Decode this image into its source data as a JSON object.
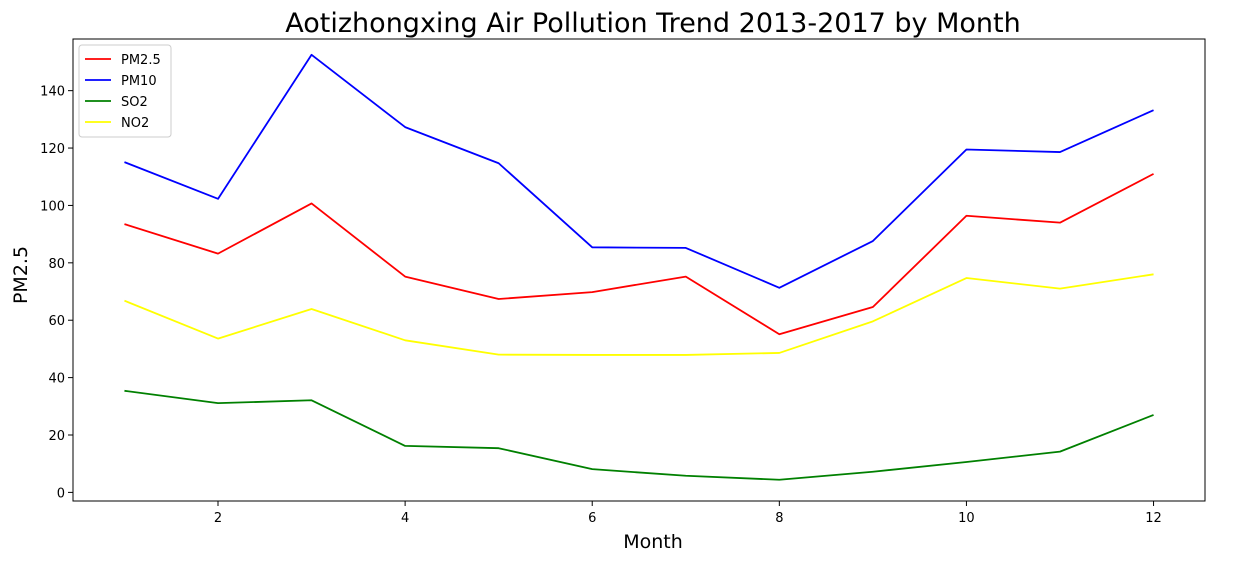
{
  "chart_data": {
    "type": "line",
    "title": "Aotizhongxing Air Pollution Trend 2013-2017 by Month",
    "xlabel": "Month",
    "ylabel": "PM2.5",
    "x": [
      1,
      2,
      3,
      4,
      5,
      6,
      7,
      8,
      9,
      10,
      11,
      12
    ],
    "xlim": [
      0.45,
      12.55
    ],
    "ylim": [
      -3,
      158
    ],
    "xticks": [
      2,
      4,
      6,
      8,
      10,
      12
    ],
    "yticks": [
      0,
      20,
      40,
      60,
      80,
      100,
      120,
      140
    ],
    "grid": false,
    "legend_position": "top-left",
    "series": [
      {
        "name": "PM2.5",
        "color": "#ff0000",
        "values": [
          93.5,
          83.2,
          100.7,
          75.2,
          67.4,
          69.8,
          75.2,
          55.1,
          64.6,
          96.4,
          94.0,
          111.0
        ]
      },
      {
        "name": "PM10",
        "color": "#0000ff",
        "values": [
          115.1,
          102.3,
          152.5,
          127.3,
          114.7,
          85.4,
          85.2,
          71.3,
          87.6,
          119.5,
          118.6,
          133.2
        ]
      },
      {
        "name": "SO2",
        "color": "#008000",
        "values": [
          35.4,
          31.1,
          32.1,
          16.2,
          15.4,
          8.1,
          5.8,
          4.4,
          7.2,
          10.6,
          14.2,
          27.0
        ]
      },
      {
        "name": "NO2",
        "color": "#ffff00",
        "values": [
          66.8,
          53.6,
          63.9,
          53.0,
          48.0,
          47.9,
          47.9,
          48.6,
          59.6,
          74.7,
          71.0,
          76.0
        ]
      }
    ]
  }
}
